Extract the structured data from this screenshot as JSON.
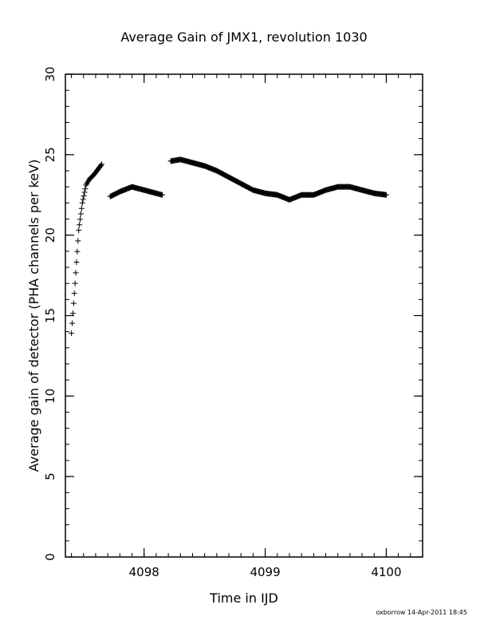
{
  "chart_data": {
    "type": "scatter",
    "title": "Average Gain of JMX1, revolution 1030",
    "xlabel": "Time in IJD",
    "ylabel": "Average gain of detector (PHA channels per keV)",
    "xlim": [
      4097.35,
      4100.3
    ],
    "ylim": [
      0,
      30
    ],
    "x_ticks": [
      4098,
      4099,
      4100
    ],
    "y_ticks": [
      0,
      5,
      10,
      15,
      20,
      25,
      30
    ],
    "x_minor_step": 0.1,
    "y_minor_step": 1,
    "marker": "plus",
    "grid": false,
    "footer": "oxborrow 14-Apr-2011 18:45",
    "series": [
      {
        "segments": [
          {
            "x": [
              4097.4,
              4097.43,
              4097.46,
              4097.49,
              4097.52,
              4097.55,
              4097.58,
              4097.61,
              4097.65
            ],
            "y": [
              13.9,
              17.0,
              20.3,
              22.0,
              23.1,
              23.5,
              23.7,
              24.0,
              24.4
            ]
          },
          {
            "x": [
              4097.72,
              4097.8,
              4097.9,
              4098.0,
              4098.1,
              4098.15
            ],
            "y": [
              22.4,
              22.7,
              23.0,
              22.8,
              22.6,
              22.5
            ]
          },
          {
            "x": [
              4098.22,
              4098.3,
              4098.4,
              4098.5,
              4098.6,
              4098.7,
              4098.8,
              4098.9,
              4099.0,
              4099.1,
              4099.2,
              4099.3,
              4099.4,
              4099.5,
              4099.6,
              4099.7,
              4099.8,
              4099.9,
              4100.0
            ],
            "y": [
              24.6,
              24.7,
              24.5,
              24.3,
              24.0,
              23.6,
              23.2,
              22.8,
              22.6,
              22.5,
              22.2,
              22.5,
              22.5,
              22.8,
              23.0,
              23.0,
              22.8,
              22.6,
              22.5
            ]
          }
        ]
      }
    ]
  }
}
